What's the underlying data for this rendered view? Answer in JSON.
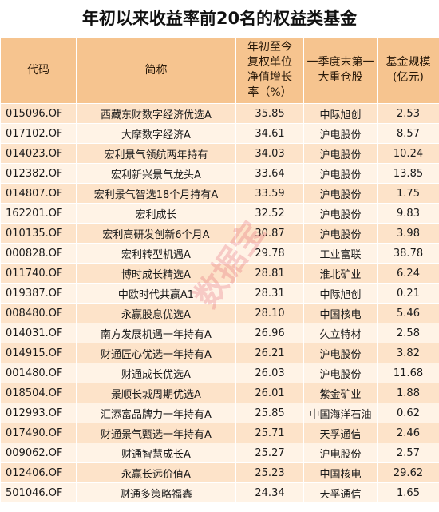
{
  "title": "年初以来收益率前20名的权益类基金",
  "headers": {
    "code": "代码",
    "name": "简称",
    "return": [
      "年初至今",
      "复权单位",
      "净值增长",
      "率（%）"
    ],
    "holding": [
      "一季度末第一",
      "大重仓股"
    ],
    "scale": [
      "基金规模",
      "(亿元)"
    ]
  },
  "rows": [
    {
      "code": "015096.OF",
      "name": "西藏东财数字经济优选A",
      "return": "35.85",
      "holding": "中际旭创",
      "scale": "2.53"
    },
    {
      "code": "017102.OF",
      "name": "大摩数字经济A",
      "return": "34.61",
      "holding": "沪电股份",
      "scale": "8.57"
    },
    {
      "code": "014023.OF",
      "name": "宏利景气领航两年持有",
      "return": "34.03",
      "holding": "沪电股份",
      "scale": "10.24"
    },
    {
      "code": "012382.OF",
      "name": "宏利新兴景气龙头A",
      "return": "33.64",
      "holding": "沪电股份",
      "scale": "13.85"
    },
    {
      "code": "014807.OF",
      "name": "宏利景气智选18个月持有A",
      "return": "33.59",
      "holding": "沪电股份",
      "scale": "1.75"
    },
    {
      "code": "162201.OF",
      "name": "宏利成长",
      "return": "32.52",
      "holding": "沪电股份",
      "scale": "9.83"
    },
    {
      "code": "010135.OF",
      "name": "宏利高研发创新6个月A",
      "return": "30.87",
      "holding": "沪电股份",
      "scale": "3.98"
    },
    {
      "code": "000828.OF",
      "name": "宏利转型机遇A",
      "return": "29.78",
      "holding": "工业富联",
      "scale": "38.78"
    },
    {
      "code": "011740.OF",
      "name": "博时成长精选A",
      "return": "28.81",
      "holding": "淮北矿业",
      "scale": "6.24"
    },
    {
      "code": "019387.OF",
      "name": "中欧时代共赢A1",
      "return": "28.31",
      "holding": "中际旭创",
      "scale": "0.21"
    },
    {
      "code": "008480.OF",
      "name": "永赢股息优选A",
      "return": "28.10",
      "holding": "中国核电",
      "scale": "5.46"
    },
    {
      "code": "014031.OF",
      "name": "南方发展机遇一年持有A",
      "return": "26.96",
      "holding": "久立特材",
      "scale": "2.58"
    },
    {
      "code": "014915.OF",
      "name": "财通匠心优选一年持有A",
      "return": "26.21",
      "holding": "沪电股份",
      "scale": "3.82"
    },
    {
      "code": "001480.OF",
      "name": "财通成长优选A",
      "return": "26.03",
      "holding": "沪电股份",
      "scale": "11.68"
    },
    {
      "code": "018504.OF",
      "name": "景顺长城周期优选A",
      "return": "26.01",
      "holding": "紫金矿业",
      "scale": "1.88"
    },
    {
      "code": "012993.OF",
      "name": "汇添富品牌力一年持有A",
      "return": "25.85",
      "holding": "中国海洋石油",
      "scale": "0.62"
    },
    {
      "code": "017490.OF",
      "name": "财通景气甄选一年持有A",
      "return": "25.71",
      "holding": "天孚通信",
      "scale": "2.46"
    },
    {
      "code": "009062.OF",
      "name": "财通智慧成长A",
      "return": "25.27",
      "holding": "沪电股份",
      "scale": "2.57"
    },
    {
      "code": "012406.OF",
      "name": "永赢长远价值A",
      "return": "25.23",
      "holding": "中国核电",
      "scale": "29.62"
    },
    {
      "code": "501046.OF",
      "name": "财通多策略福鑫",
      "return": "24.34",
      "holding": "天孚通信",
      "scale": "1.65"
    }
  ],
  "watermark": "数据宝"
}
